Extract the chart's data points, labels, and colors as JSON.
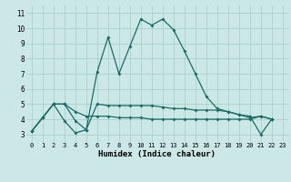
{
  "xlabel": "Humidex (Indice chaleur)",
  "bg_color": "#cce8e6",
  "grid_color": "#aacfcc",
  "line_color": "#1a6b66",
  "xlim": [
    -0.5,
    23.5
  ],
  "ylim": [
    2.5,
    11.5
  ],
  "xticks": [
    0,
    1,
    2,
    3,
    4,
    5,
    6,
    7,
    8,
    9,
    10,
    11,
    12,
    13,
    14,
    15,
    16,
    17,
    18,
    19,
    20,
    21,
    22,
    23
  ],
  "yticks": [
    3,
    4,
    5,
    6,
    7,
    8,
    9,
    10,
    11
  ],
  "series1_x": [
    0,
    1,
    2,
    3,
    4,
    5,
    6,
    7,
    8,
    9,
    10,
    11,
    12,
    13,
    14,
    15,
    16,
    17,
    18,
    19,
    20,
    21,
    22
  ],
  "series1_y": [
    3.2,
    4.1,
    5.0,
    3.9,
    3.1,
    3.3,
    7.1,
    9.4,
    7.0,
    8.8,
    10.6,
    10.2,
    10.6,
    9.9,
    8.5,
    7.0,
    5.5,
    4.7,
    4.5,
    4.3,
    4.2,
    3.0,
    4.0
  ],
  "series2_x": [
    0,
    1,
    2,
    3,
    4,
    5,
    6,
    7,
    8,
    9,
    10,
    11,
    12,
    13,
    14,
    15,
    16,
    17,
    18,
    19,
    20,
    21,
    22
  ],
  "series2_y": [
    3.2,
    4.1,
    5.0,
    5.0,
    3.9,
    3.3,
    5.0,
    4.9,
    4.9,
    4.9,
    4.9,
    4.9,
    4.8,
    4.7,
    4.7,
    4.6,
    4.6,
    4.6,
    4.5,
    4.3,
    4.1,
    4.2,
    4.0
  ],
  "series3_x": [
    0,
    1,
    2,
    3,
    4,
    5,
    6,
    7,
    8,
    9,
    10,
    11,
    12,
    13,
    14,
    15,
    16,
    17,
    18,
    19,
    20,
    21,
    22
  ],
  "series3_y": [
    3.2,
    4.1,
    5.0,
    5.0,
    4.5,
    4.2,
    4.2,
    4.2,
    4.1,
    4.1,
    4.1,
    4.0,
    4.0,
    4.0,
    4.0,
    4.0,
    4.0,
    4.0,
    4.0,
    4.0,
    4.0,
    4.2,
    4.0
  ]
}
